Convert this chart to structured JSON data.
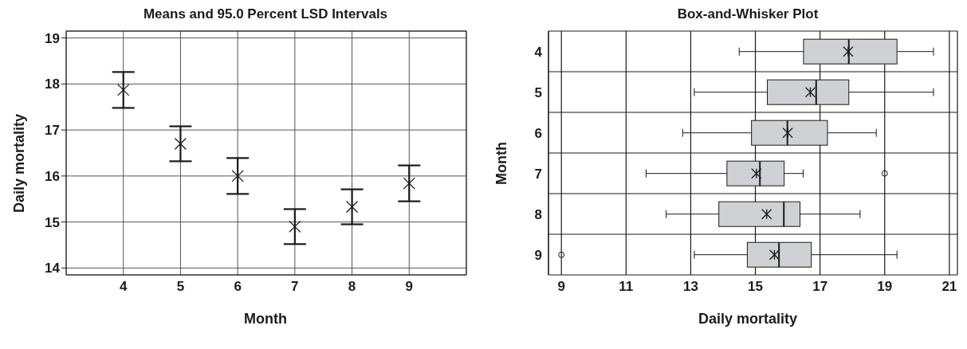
{
  "chart_data": [
    {
      "type": "scatter",
      "title": "Means and 95.0 Percent LSD Intervals",
      "xlabel": "Month",
      "ylabel": "Daily mortality",
      "x": [
        4,
        5,
        6,
        7,
        8,
        9
      ],
      "values": [
        17.87,
        16.7,
        16.0,
        14.9,
        15.33,
        15.84
      ],
      "errors": [
        0.39,
        0.38,
        0.39,
        0.38,
        0.38,
        0.39
      ],
      "color": "#1a1a1a",
      "marker": "cross",
      "xlim": [
        3,
        10
      ],
      "xticks": [
        4,
        5,
        6,
        7,
        8,
        9
      ],
      "ylim": [
        13.85,
        19.15
      ],
      "yticks": [
        14,
        15,
        16,
        17,
        18,
        19
      ],
      "grid": true
    },
    {
      "type": "box",
      "orientation": "horizontal",
      "title": "Box-and-Whisker Plot",
      "xlabel": "Daily mortality",
      "ylabel": "Month",
      "categories": [
        "4",
        "5",
        "6",
        "7",
        "8",
        "9"
      ],
      "color": "#d0d1d4",
      "xlim": [
        8.6,
        21.25
      ],
      "xticks": [
        9,
        11,
        13,
        15,
        17,
        19,
        21
      ],
      "grid": true,
      "boxes": [
        {
          "low": 14.5,
          "q1": 16.49,
          "median": 17.89,
          "q3": 19.38,
          "high": 20.51,
          "mean": 17.87
        },
        {
          "low": 13.11,
          "q1": 15.37,
          "median": 16.88,
          "q3": 17.89,
          "high": 20.51,
          "mean": 16.7
        },
        {
          "low": 12.75,
          "q1": 14.88,
          "median": 15.99,
          "q3": 17.23,
          "high": 18.74,
          "mean": 16.0
        },
        {
          "low": 11.62,
          "q1": 14.12,
          "median": 15.14,
          "q3": 15.89,
          "high": 16.48,
          "mean": 15.03,
          "outliers": [
            19.0
          ]
        },
        {
          "low": 12.24,
          "q1": 13.87,
          "median": 15.88,
          "q3": 16.38,
          "high": 18.24,
          "mean": 15.35
        },
        {
          "low": 13.11,
          "q1": 14.75,
          "median": 15.73,
          "q3": 16.73,
          "high": 19.38,
          "mean": 15.59,
          "outliers": [
            9.0
          ]
        }
      ]
    }
  ]
}
